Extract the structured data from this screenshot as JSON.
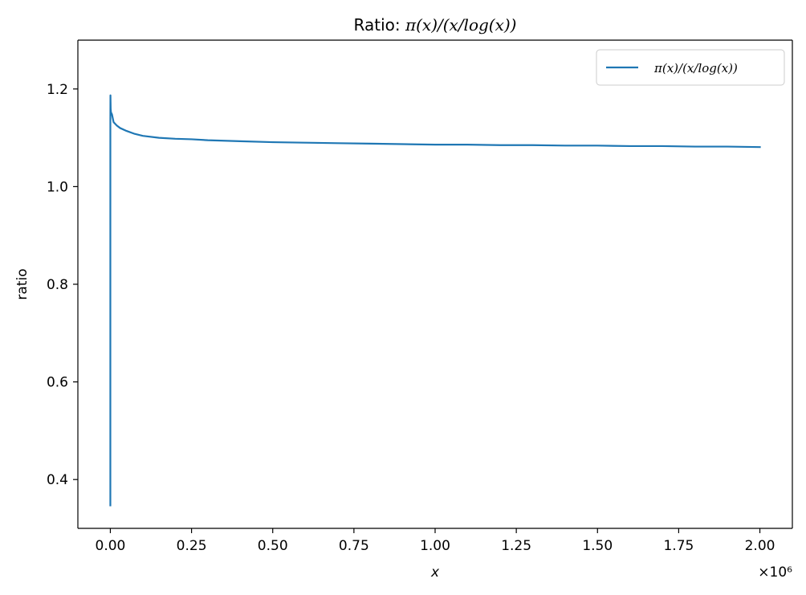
{
  "chart_data": {
    "type": "line",
    "title": "Ratio: π(x)/(x/log(x))",
    "title_prefix": "Ratio: ",
    "title_math": "π(x)/(x/log(x))",
    "xlabel": "x",
    "ylabel": "ratio",
    "x_offset_text": "×10⁶",
    "xlim": [
      -100000,
      2100000
    ],
    "ylim": [
      0.3,
      1.3
    ],
    "xticks": [
      0,
      250000,
      500000,
      750000,
      1000000,
      1250000,
      1500000,
      1750000,
      2000000
    ],
    "xtick_labels": [
      "0.00",
      "0.25",
      "0.50",
      "0.75",
      "1.00",
      "1.25",
      "1.50",
      "1.75",
      "2.00"
    ],
    "yticks": [
      0.4,
      0.6,
      0.8,
      1.0,
      1.2
    ],
    "ytick_labels": [
      "0.4",
      "0.6",
      "0.8",
      "1.0",
      "1.2"
    ],
    "grid": false,
    "legend_position": "top-right",
    "series": [
      {
        "name": "π(x)/(x/log(x))",
        "color": "#1f77b4",
        "x": [
          2,
          3,
          5,
          10,
          30,
          100,
          300,
          1000,
          2000,
          5000,
          10000,
          20000,
          30000,
          50000,
          75000,
          100000,
          150000,
          200000,
          250000,
          300000,
          400000,
          500000,
          600000,
          700000,
          800000,
          900000,
          1000000,
          1100000,
          1200000,
          1300000,
          1400000,
          1500000,
          1600000,
          1700000,
          1800000,
          1900000,
          2000000
        ],
        "y": [
          0.347,
          0.732,
          1.073,
          0.921,
          1.134,
          1.151,
          1.187,
          1.159,
          1.152,
          1.148,
          1.132,
          1.125,
          1.12,
          1.114,
          1.108,
          1.104,
          1.1,
          1.098,
          1.097,
          1.095,
          1.093,
          1.091,
          1.09,
          1.089,
          1.088,
          1.087,
          1.086,
          1.086,
          1.085,
          1.085,
          1.084,
          1.084,
          1.083,
          1.083,
          1.082,
          1.082,
          1.081
        ]
      }
    ]
  }
}
